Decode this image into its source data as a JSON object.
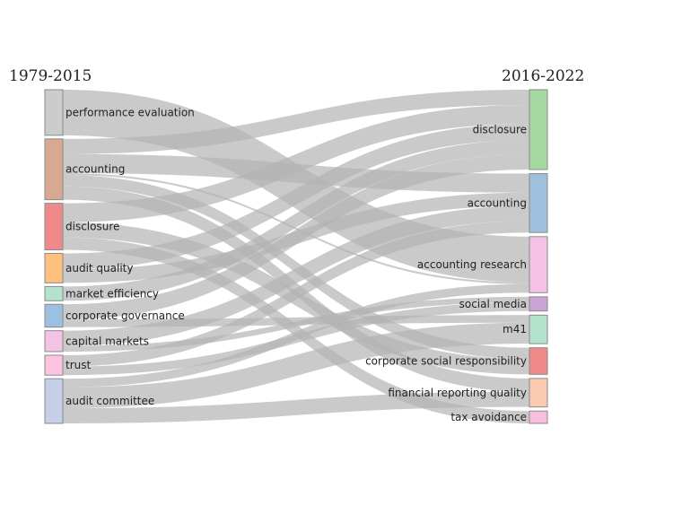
{
  "columns": {
    "left": "1979-2015",
    "right": "2016-2022"
  },
  "left_nodes": [
    {
      "id": "performance_evaluation",
      "label": "performance evaluation",
      "color": "#cccccc"
    },
    {
      "id": "accounting",
      "label": "accounting",
      "color": "#d7a990"
    },
    {
      "id": "disclosure",
      "label": "disclosure",
      "color": "#f08a8a"
    },
    {
      "id": "audit_quality",
      "label": "audit quality",
      "color": "#fdc07f"
    },
    {
      "id": "market_efficiency",
      "label": "market efficiency",
      "color": "#b3e2cd"
    },
    {
      "id": "corporate_governance",
      "label": "corporate governance",
      "color": "#9ec0e0"
    },
    {
      "id": "capital_markets",
      "label": "capital markets",
      "color": "#f4c2e4"
    },
    {
      "id": "trust",
      "label": "trust",
      "color": "#fcc3e0"
    },
    {
      "id": "audit_committee",
      "label": "audit committee",
      "color": "#c6cfe8"
    }
  ],
  "right_nodes": [
    {
      "id": "disclosure",
      "label": "disclosure",
      "color": "#a6d8a2"
    },
    {
      "id": "accounting",
      "label": "accounting",
      "color": "#9ec0dc"
    },
    {
      "id": "accounting_research",
      "label": "accounting research",
      "color": "#f4c2e4"
    },
    {
      "id": "social_media",
      "label": "social media",
      "color": "#caa4d4"
    },
    {
      "id": "m41",
      "label": "m41",
      "color": "#b3e2cd"
    },
    {
      "id": "corporate_social_responsibility",
      "label": "corporate social responsibility",
      "color": "#f08a8a"
    },
    {
      "id": "financial_reporting_quality",
      "label": "financial reporting quality",
      "color": "#fbc9b0"
    },
    {
      "id": "tax_avoidance",
      "label": "tax avoidance",
      "color": "#f7c0df"
    }
  ],
  "links": [
    {
      "source": "performance_evaluation",
      "target": "accounting_research",
      "value": 48
    },
    {
      "source": "accounting",
      "target": "accounting",
      "value": 20
    },
    {
      "source": "accounting",
      "target": "disclosure",
      "value": 16
    },
    {
      "source": "accounting",
      "target": "corporate_social_responsibility",
      "value": 12
    },
    {
      "source": "accounting",
      "target": "accounting_research",
      "value": 2
    },
    {
      "source": "accounting",
      "target": "financial_reporting_quality",
      "value": 14
    },
    {
      "source": "disclosure",
      "target": "disclosure",
      "value": 20
    },
    {
      "source": "disclosure",
      "target": "corporate_social_responsibility",
      "value": 16
    },
    {
      "source": "disclosure",
      "target": "tax_avoidance",
      "value": 13
    },
    {
      "source": "audit_quality",
      "target": "accounting",
      "value": 14
    },
    {
      "source": "audit_quality",
      "target": "disclosure",
      "value": 17
    },
    {
      "source": "market_efficiency",
      "target": "disclosure",
      "value": 15
    },
    {
      "source": "corporate_governance",
      "target": "disclosure",
      "value": 16
    },
    {
      "source": "corporate_governance",
      "target": "m41",
      "value": 8
    },
    {
      "source": "capital_markets",
      "target": "accounting",
      "value": 16
    },
    {
      "source": "capital_markets",
      "target": "social_media",
      "value": 6
    },
    {
      "source": "trust",
      "target": "accounting",
      "value": 12
    },
    {
      "source": "trust",
      "target": "social_media",
      "value": 9
    },
    {
      "source": "audit_committee",
      "target": "m41",
      "value": 22
    },
    {
      "source": "audit_committee",
      "target": "financial_reporting_quality",
      "value": 16
    },
    {
      "source": "audit_committee",
      "target": "accounting_research",
      "value": 9
    }
  ],
  "colors": {
    "link": "#b3b3b3",
    "node_stroke": "#8a8a8a"
  }
}
